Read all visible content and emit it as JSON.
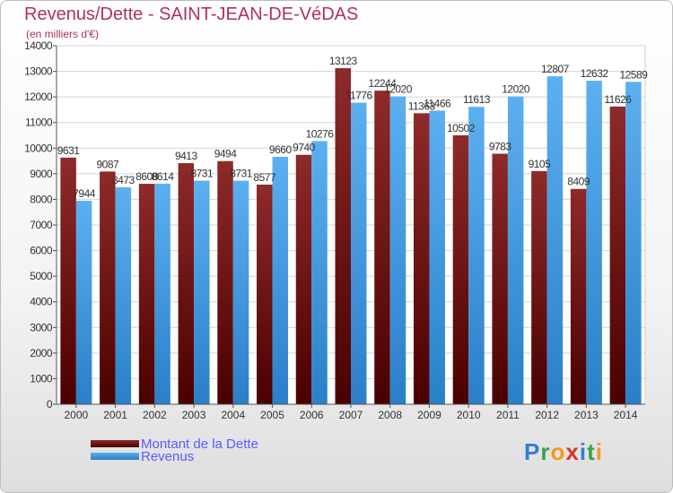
{
  "header": {
    "title": "Revenus/Dette - SAINT-JEAN-DE-VéDAS",
    "subtitle": "(en milliers d'€)"
  },
  "chart_data": {
    "type": "bar",
    "categories": [
      "2000",
      "2001",
      "2002",
      "2003",
      "2004",
      "2005",
      "2006",
      "2007",
      "2008",
      "2009",
      "2010",
      "2011",
      "2012",
      "2013",
      "2014"
    ],
    "series": [
      {
        "name": "Montant de la Dette",
        "color": "#7a1c1c",
        "values": [
          9631,
          9087,
          8608,
          9413,
          9494,
          8577,
          9740,
          13123,
          12244,
          11363,
          10502,
          9783,
          9105,
          8409,
          11626
        ],
        "labels": [
          "9631",
          "9087",
          "8608",
          "9413",
          "9494",
          "8577",
          "9740",
          "13123",
          "12244",
          "11363",
          "10502",
          "9783",
          "9105",
          "8409",
          "11626"
        ]
      },
      {
        "name": "Revenus",
        "color": "#4aa3e8",
        "values": [
          7944,
          8473,
          8614,
          8731,
          8731,
          9660,
          10276,
          11776,
          12020,
          11466,
          11613,
          12020,
          12807,
          12632,
          12589
        ],
        "labels": [
          "7944",
          "8473",
          "8614",
          "8731",
          "8731",
          "9660",
          "10276",
          "11776",
          "12020",
          "11466",
          "11613",
          "12020",
          "12807",
          "12632",
          "12589"
        ]
      }
    ],
    "y_ticks": [
      "0",
      "1000",
      "2000",
      "3000",
      "4000",
      "5000",
      "6000",
      "7000",
      "8000",
      "9000",
      "10000",
      "11000",
      "12000",
      "13000",
      "14000"
    ],
    "ylim": [
      0,
      14000
    ],
    "grid": true,
    "legend_position": "bottom-left"
  },
  "logo": {
    "letters": [
      "P",
      "r",
      "o",
      "x",
      "i",
      "t",
      "i"
    ]
  }
}
